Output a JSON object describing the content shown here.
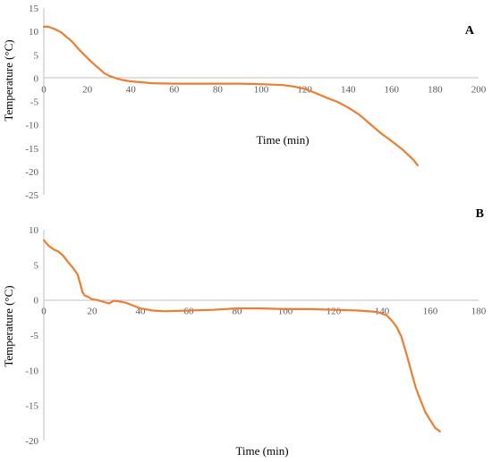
{
  "chart_data": [
    {
      "type": "line",
      "panel_label": "A",
      "xlabel": "Time (min)",
      "ylabel": "Temperature (°C)",
      "xlim": [
        0,
        200
      ],
      "ylim": [
        -25,
        15
      ],
      "x_ticks": [
        0,
        20,
        40,
        60,
        80,
        100,
        120,
        140,
        160,
        180,
        200
      ],
      "y_ticks": [
        15,
        10,
        5,
        0,
        -5,
        -10,
        -15,
        -20,
        -25
      ],
      "grid": false,
      "color": "#ED7D31",
      "series": [
        {
          "x": [
            0,
            2,
            5,
            8,
            10,
            13,
            16,
            19,
            22,
            25,
            28,
            30,
            33,
            36,
            40,
            45,
            50,
            60,
            70,
            80,
            90,
            100,
            105,
            110,
            115,
            120,
            125,
            130,
            135,
            140,
            145,
            150,
            155,
            160,
            165,
            170,
            172
          ],
          "y": [
            11,
            11,
            10.5,
            9.8,
            9,
            7.8,
            6.2,
            4.8,
            3.4,
            2.2,
            1,
            0.5,
            0,
            -0.4,
            -0.7,
            -0.9,
            -1.1,
            -1.2,
            -1.2,
            -1.2,
            -1.2,
            -1.3,
            -1.4,
            -1.5,
            -1.8,
            -2.3,
            -3.2,
            -4.2,
            -5.1,
            -6.3,
            -7.8,
            -9.8,
            -11.8,
            -13.5,
            -15.3,
            -17.5,
            -18.7
          ]
        }
      ]
    },
    {
      "type": "line",
      "panel_label": "B",
      "xlabel": "Time (min)",
      "ylabel": "Temperature (°C)",
      "xlim": [
        0,
        180
      ],
      "ylim": [
        -20,
        10
      ],
      "x_ticks": [
        0,
        20,
        40,
        60,
        80,
        100,
        120,
        140,
        160,
        180
      ],
      "y_ticks": [
        10,
        5,
        0,
        -5,
        -10,
        -15,
        -20
      ],
      "grid": false,
      "color": "#ED7D31",
      "series": [
        {
          "x": [
            0,
            2,
            4,
            6,
            8,
            10,
            12,
            14,
            15,
            16,
            17,
            18,
            20,
            22,
            25,
            27,
            29,
            31,
            34,
            37,
            40,
            45,
            50,
            60,
            70,
            80,
            90,
            100,
            110,
            120,
            130,
            138,
            142,
            144,
            146,
            148,
            150,
            152,
            154,
            156,
            158,
            160,
            162,
            164
          ],
          "y": [
            8.5,
            7.7,
            7.2,
            6.9,
            6.3,
            5.4,
            4.6,
            3.6,
            2.4,
            1.1,
            0.6,
            0.5,
            0.1,
            0,
            -0.3,
            -0.5,
            -0.1,
            -0.2,
            -0.4,
            -0.8,
            -1.2,
            -1.5,
            -1.6,
            -1.5,
            -1.4,
            -1.2,
            -1.2,
            -1.3,
            -1.3,
            -1.4,
            -1.5,
            -1.7,
            -2.2,
            -2.9,
            -3.8,
            -5.2,
            -7.5,
            -10,
            -12.5,
            -14.3,
            -16,
            -17.1,
            -18.2,
            -18.7
          ]
        }
      ]
    }
  ]
}
